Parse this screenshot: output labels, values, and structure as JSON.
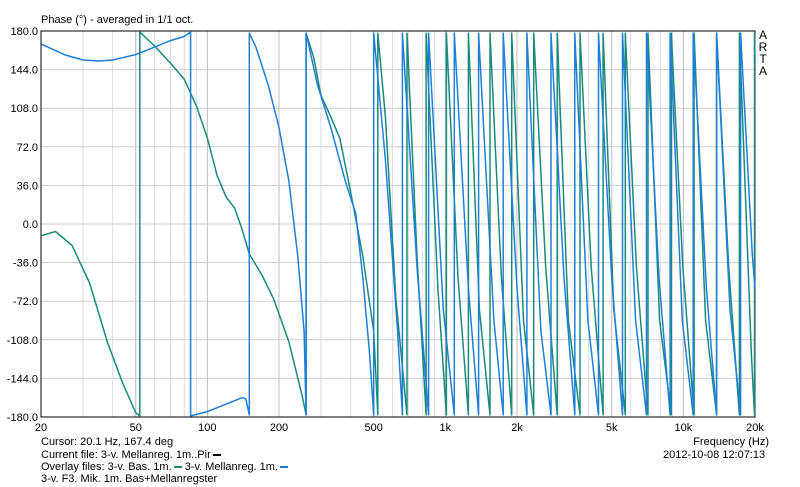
{
  "chart_data": {
    "type": "line",
    "title": "Phase (°) - averaged in 1/1 oct.",
    "xlabel": "Frequency (Hz)",
    "ylabel": "Phase (°)",
    "xscale": "log",
    "xlim": [
      20,
      20000
    ],
    "ylim": [
      -180,
      180
    ],
    "grid": true,
    "y_ticks": [
      "180.0",
      "144.0",
      "108.0",
      "72.0",
      "36.0",
      "0.0",
      "-36.0",
      "-72.0",
      "-108.0",
      "-144.0",
      "-180.0"
    ],
    "x_ticks": [
      {
        "value": 20,
        "label": "20"
      },
      {
        "value": 50,
        "label": "50"
      },
      {
        "value": 100,
        "label": "100"
      },
      {
        "value": 200,
        "label": "200"
      },
      {
        "value": 500,
        "label": "500"
      },
      {
        "value": 1000,
        "label": "1k"
      },
      {
        "value": 2000,
        "label": "2k"
      },
      {
        "value": 5000,
        "label": "5k"
      },
      {
        "value": 10000,
        "label": "10k"
      },
      {
        "value": 20000,
        "label": "20k"
      }
    ],
    "watermark": [
      "A",
      "R",
      "T",
      "A"
    ],
    "series": [
      {
        "name": "3-v. Bas. 1m.",
        "color": "#1a8a7a",
        "points": [
          [
            20,
            -11
          ],
          [
            23,
            -7
          ],
          [
            27,
            -20
          ],
          [
            32,
            -55
          ],
          [
            38,
            -110
          ],
          [
            44,
            -148
          ],
          [
            50,
            -176
          ],
          [
            52,
            -179
          ],
          [
            52,
            179
          ],
          [
            60,
            166
          ],
          [
            70,
            150
          ],
          [
            80,
            135
          ],
          [
            90,
            110
          ],
          [
            100,
            80
          ],
          [
            110,
            45
          ],
          [
            120,
            25
          ],
          [
            130,
            15
          ],
          [
            140,
            -5
          ],
          [
            150,
            -28
          ],
          [
            170,
            -48
          ],
          [
            190,
            -70
          ],
          [
            220,
            -110
          ],
          [
            250,
            -160
          ],
          [
            260,
            -178
          ],
          [
            260,
            178
          ],
          [
            280,
            155
          ],
          [
            300,
            120
          ],
          [
            330,
            100
          ],
          [
            360,
            80
          ],
          [
            400,
            30
          ],
          [
            450,
            -30
          ],
          [
            500,
            -100
          ],
          [
            520,
            -178
          ],
          [
            520,
            178
          ],
          [
            560,
            100
          ],
          [
            620,
            -70
          ],
          [
            690,
            -178
          ],
          [
            690,
            178
          ],
          [
            760,
            -30
          ],
          [
            830,
            -178
          ],
          [
            830,
            178
          ],
          [
            930,
            -60
          ],
          [
            1010,
            -178
          ],
          [
            1010,
            178
          ],
          [
            1130,
            -50
          ],
          [
            1250,
            -178
          ],
          [
            1250,
            178
          ],
          [
            1390,
            -80
          ],
          [
            1540,
            -178
          ],
          [
            1540,
            178
          ],
          [
            1720,
            -50
          ],
          [
            1900,
            -178
          ],
          [
            1900,
            178
          ],
          [
            2130,
            -90
          ],
          [
            2350,
            -178
          ],
          [
            2350,
            178
          ],
          [
            2640,
            -40
          ],
          [
            2950,
            -178
          ],
          [
            2950,
            178
          ],
          [
            3290,
            -90
          ],
          [
            3680,
            -178
          ],
          [
            3680,
            178
          ],
          [
            4100,
            -40
          ],
          [
            4600,
            -178
          ],
          [
            4600,
            178
          ],
          [
            5100,
            -80
          ],
          [
            5700,
            -178
          ],
          [
            5700,
            178
          ],
          [
            6350,
            -40
          ],
          [
            7100,
            -178
          ],
          [
            7100,
            178
          ],
          [
            7950,
            -90
          ],
          [
            8900,
            -178
          ],
          [
            8900,
            178
          ],
          [
            9950,
            -40
          ],
          [
            11100,
            -178
          ],
          [
            11100,
            178
          ],
          [
            12400,
            -90
          ],
          [
            13800,
            -178
          ],
          [
            13800,
            178
          ],
          [
            15500,
            -40
          ],
          [
            17200,
            -178
          ],
          [
            17200,
            178
          ],
          [
            19300,
            -120
          ],
          [
            19900,
            -178
          ],
          [
            19900,
            178
          ],
          [
            20000,
            150
          ]
        ]
      },
      {
        "name": "3-v. Mellanreg. 1m.",
        "color": "#1f7fd8",
        "points": [
          [
            20,
            168
          ],
          [
            25,
            158
          ],
          [
            30,
            153
          ],
          [
            35,
            152
          ],
          [
            40,
            153
          ],
          [
            50,
            158
          ],
          [
            60,
            165
          ],
          [
            70,
            171
          ],
          [
            80,
            175
          ],
          [
            85,
            179
          ],
          [
            85,
            -179
          ],
          [
            100,
            -175
          ],
          [
            120,
            -168
          ],
          [
            140,
            -162
          ],
          [
            145,
            -163
          ],
          [
            150,
            -178
          ],
          [
            150,
            178
          ],
          [
            160,
            165
          ],
          [
            180,
            130
          ],
          [
            200,
            90
          ],
          [
            220,
            40
          ],
          [
            240,
            -30
          ],
          [
            255,
            -100
          ],
          [
            260,
            -178
          ],
          [
            260,
            178
          ],
          [
            290,
            130
          ],
          [
            330,
            90
          ],
          [
            380,
            40
          ],
          [
            420,
            10
          ],
          [
            450,
            -50
          ],
          [
            480,
            -120
          ],
          [
            500,
            -178
          ],
          [
            500,
            178
          ],
          [
            560,
            60
          ],
          [
            630,
            -100
          ],
          [
            660,
            -178
          ],
          [
            660,
            178
          ],
          [
            760,
            -40
          ],
          [
            850,
            -178
          ],
          [
            850,
            178
          ],
          [
            980,
            -80
          ],
          [
            1090,
            -178
          ],
          [
            1090,
            178
          ],
          [
            1250,
            -60
          ],
          [
            1380,
            -178
          ],
          [
            1380,
            178
          ],
          [
            1600,
            -90
          ],
          [
            1750,
            -178
          ],
          [
            1750,
            178
          ],
          [
            2000,
            -60
          ],
          [
            2200,
            -178
          ],
          [
            2200,
            178
          ],
          [
            2520,
            -100
          ],
          [
            2780,
            -178
          ],
          [
            2780,
            178
          ],
          [
            3150,
            -50
          ],
          [
            3500,
            -178
          ],
          [
            3500,
            178
          ],
          [
            3970,
            -90
          ],
          [
            4400,
            -178
          ],
          [
            4400,
            178
          ],
          [
            5000,
            -50
          ],
          [
            5550,
            -178
          ],
          [
            5550,
            178
          ],
          [
            6300,
            -90
          ],
          [
            7000,
            -178
          ],
          [
            7000,
            178
          ],
          [
            7900,
            -50
          ],
          [
            8800,
            -178
          ],
          [
            8800,
            178
          ],
          [
            9900,
            -90
          ],
          [
            11000,
            -178
          ],
          [
            11000,
            178
          ],
          [
            12500,
            -60
          ],
          [
            13800,
            -178
          ],
          [
            13800,
            178
          ],
          [
            15700,
            -80
          ],
          [
            17400,
            -178
          ],
          [
            17400,
            178
          ],
          [
            19500,
            -30
          ],
          [
            20000,
            -60
          ]
        ]
      }
    ]
  },
  "info": {
    "cursor": "Cursor: 20.1 Hz, 167.4 deg",
    "current_file": "Current file: 3-v. Mellanreg. 1m..Pir",
    "overlay_label": "Overlay files:",
    "overlay_1": "3-v. Bas. 1m.",
    "overlay_2": "3-v. Mellanreg. 1m.",
    "overlay_3": "3-v. F3. Mik. 1m. Bas+Mellanregster",
    "date": "2012-10-08  12:07:13"
  },
  "colors": {
    "current_file_swatch": "#000000",
    "overlay_1": "#1a8a7a",
    "overlay_2": "#1f7fd8"
  }
}
